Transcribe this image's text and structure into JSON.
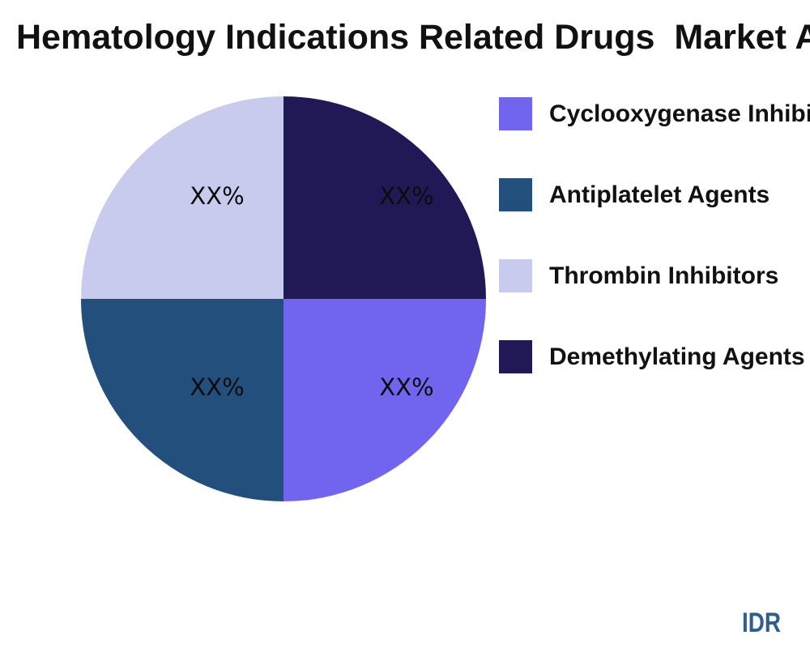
{
  "chart_data": {
    "type": "pie",
    "title": "Hematology Indications Related Drugs  Market Analysis",
    "values_unit": "percent",
    "slices": [
      {
        "label": "Cyclooxygenase Inhibitors",
        "value": 25,
        "value_label": "XX%",
        "color": "#7165EF"
      },
      {
        "label": "Antiplatelet Agents",
        "value": 25,
        "value_label": "XX%",
        "color": "#224F7C"
      },
      {
        "label": "Thrombin Inhibitors",
        "value": 25,
        "value_label": "XX%",
        "color": "#C9CBEE"
      },
      {
        "label": "Demethylating Agents",
        "value": 25,
        "value_label": "XX%",
        "color": "#211956"
      }
    ],
    "clockwise_from_top": [
      3,
      0,
      1,
      2
    ],
    "legend_position": "right",
    "grid": false
  },
  "branding": {
    "logo_text": "IDR",
    "logo_color": "#2E5F8C"
  }
}
